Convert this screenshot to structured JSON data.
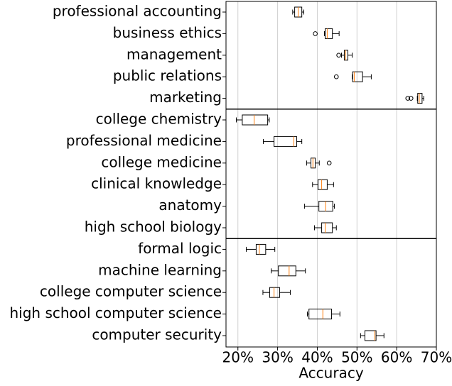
{
  "chart_data": {
    "type": "box",
    "orientation": "horizontal",
    "x_label": "Accuracy",
    "xlim": [
      17,
      70
    ],
    "xticks": [
      {
        "value": 20,
        "label": "20%"
      },
      {
        "value": 30,
        "label": "30%"
      },
      {
        "value": 40,
        "label": "40%"
      },
      {
        "value": 50,
        "label": "50%"
      },
      {
        "value": 60,
        "label": "60%"
      },
      {
        "value": 70,
        "label": "70%"
      }
    ],
    "grid": true,
    "box_color": "#000000",
    "median_color": "#ff7f0e",
    "groups": [
      {
        "categories": [
          "professional accounting",
          "business ethics",
          "management",
          "public relations",
          "marketing"
        ],
        "boxes": [
          {
            "low": 33.8,
            "q1": 34.3,
            "median": 35.2,
            "q3": 36.1,
            "high": 36.6
          },
          {
            "low": 41.8,
            "q1": 42.0,
            "median": 42.5,
            "q3": 43.8,
            "high": 45.5,
            "outliers": [
              39.5
            ]
          },
          {
            "low": 46.1,
            "q1": 46.8,
            "median": 47.1,
            "q3": 47.7,
            "high": 48.8,
            "outliers": [
              45.4
            ]
          },
          {
            "low": 48.8,
            "q1": 48.9,
            "median": 49.3,
            "q3": 51.4,
            "high": 53.6,
            "outliers": [
              44.8
            ]
          },
          {
            "low": 65.2,
            "q1": 65.3,
            "median": 65.7,
            "q3": 66.4,
            "high": 66.8,
            "outliers": [
              62.8,
              63.6
            ]
          }
        ]
      },
      {
        "categories": [
          "college chemistry",
          "professional medicine",
          "college medicine",
          "clinical knowledge",
          "anatomy",
          "high school biology"
        ],
        "boxes": [
          {
            "low": 19.6,
            "q1": 21.1,
            "median": 24.1,
            "q3": 27.5,
            "high": 27.9
          },
          {
            "low": 26.4,
            "q1": 29.1,
            "median": 34.1,
            "q3": 34.8,
            "high": 36.1
          },
          {
            "low": 37.3,
            "q1": 38.4,
            "median": 38.9,
            "q3": 39.5,
            "high": 40.5,
            "outliers": [
              43.0
            ]
          },
          {
            "low": 38.8,
            "q1": 40.2,
            "median": 41.1,
            "q3": 42.5,
            "high": 44.1
          },
          {
            "low": 36.8,
            "q1": 40.4,
            "median": 42.1,
            "q3": 43.9,
            "high": 44.3
          },
          {
            "low": 39.3,
            "q1": 41.1,
            "median": 42.0,
            "q3": 43.8,
            "high": 44.8
          }
        ]
      },
      {
        "categories": [
          "formal logic",
          "machine learning",
          "college computer science",
          "high school computer science",
          "computer security"
        ],
        "boxes": [
          {
            "low": 22.1,
            "q1": 24.6,
            "median": 25.4,
            "q3": 27.0,
            "high": 29.3
          },
          {
            "low": 28.4,
            "q1": 30.2,
            "median": 32.9,
            "q3": 34.6,
            "high": 37.0
          },
          {
            "low": 26.3,
            "q1": 28.0,
            "median": 29.1,
            "q3": 30.5,
            "high": 33.2
          },
          {
            "low": 37.5,
            "q1": 37.9,
            "median": 41.4,
            "q3": 43.6,
            "high": 45.7
          },
          {
            "low": 50.9,
            "q1": 52.0,
            "median": 54.5,
            "q3": 54.8,
            "high": 56.8
          }
        ]
      }
    ]
  }
}
